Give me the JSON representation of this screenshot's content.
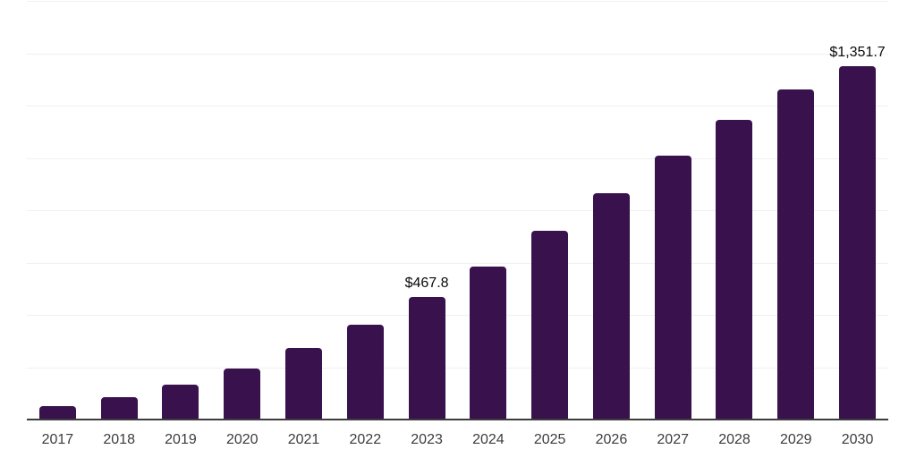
{
  "chart_data": {
    "type": "bar",
    "title": "",
    "xlabel": "",
    "ylabel": "",
    "categories": [
      "2017",
      "2018",
      "2019",
      "2020",
      "2021",
      "2022",
      "2023",
      "2024",
      "2025",
      "2026",
      "2027",
      "2028",
      "2029",
      "2030"
    ],
    "values": [
      53,
      86,
      133,
      194,
      272,
      361,
      467.8,
      586,
      722,
      866,
      1010,
      1144,
      1262,
      1351.7
    ],
    "data_labels": [
      "",
      "",
      "",
      "",
      "",
      "",
      "$467.8",
      "",
      "",
      "",
      "",
      "",
      "",
      "$1,351.7"
    ],
    "ylim": [
      0,
      1600
    ],
    "gridline_step": 200,
    "grid": "horizontal-only",
    "legend": "none",
    "colors": {
      "bar": "#38114D",
      "axis_line": "#3C3C3C",
      "gridline": "#F0F0F1",
      "tick_label": "#3C3C3C",
      "data_label": "#0A0A0A",
      "background": "#FFFFFF"
    }
  }
}
